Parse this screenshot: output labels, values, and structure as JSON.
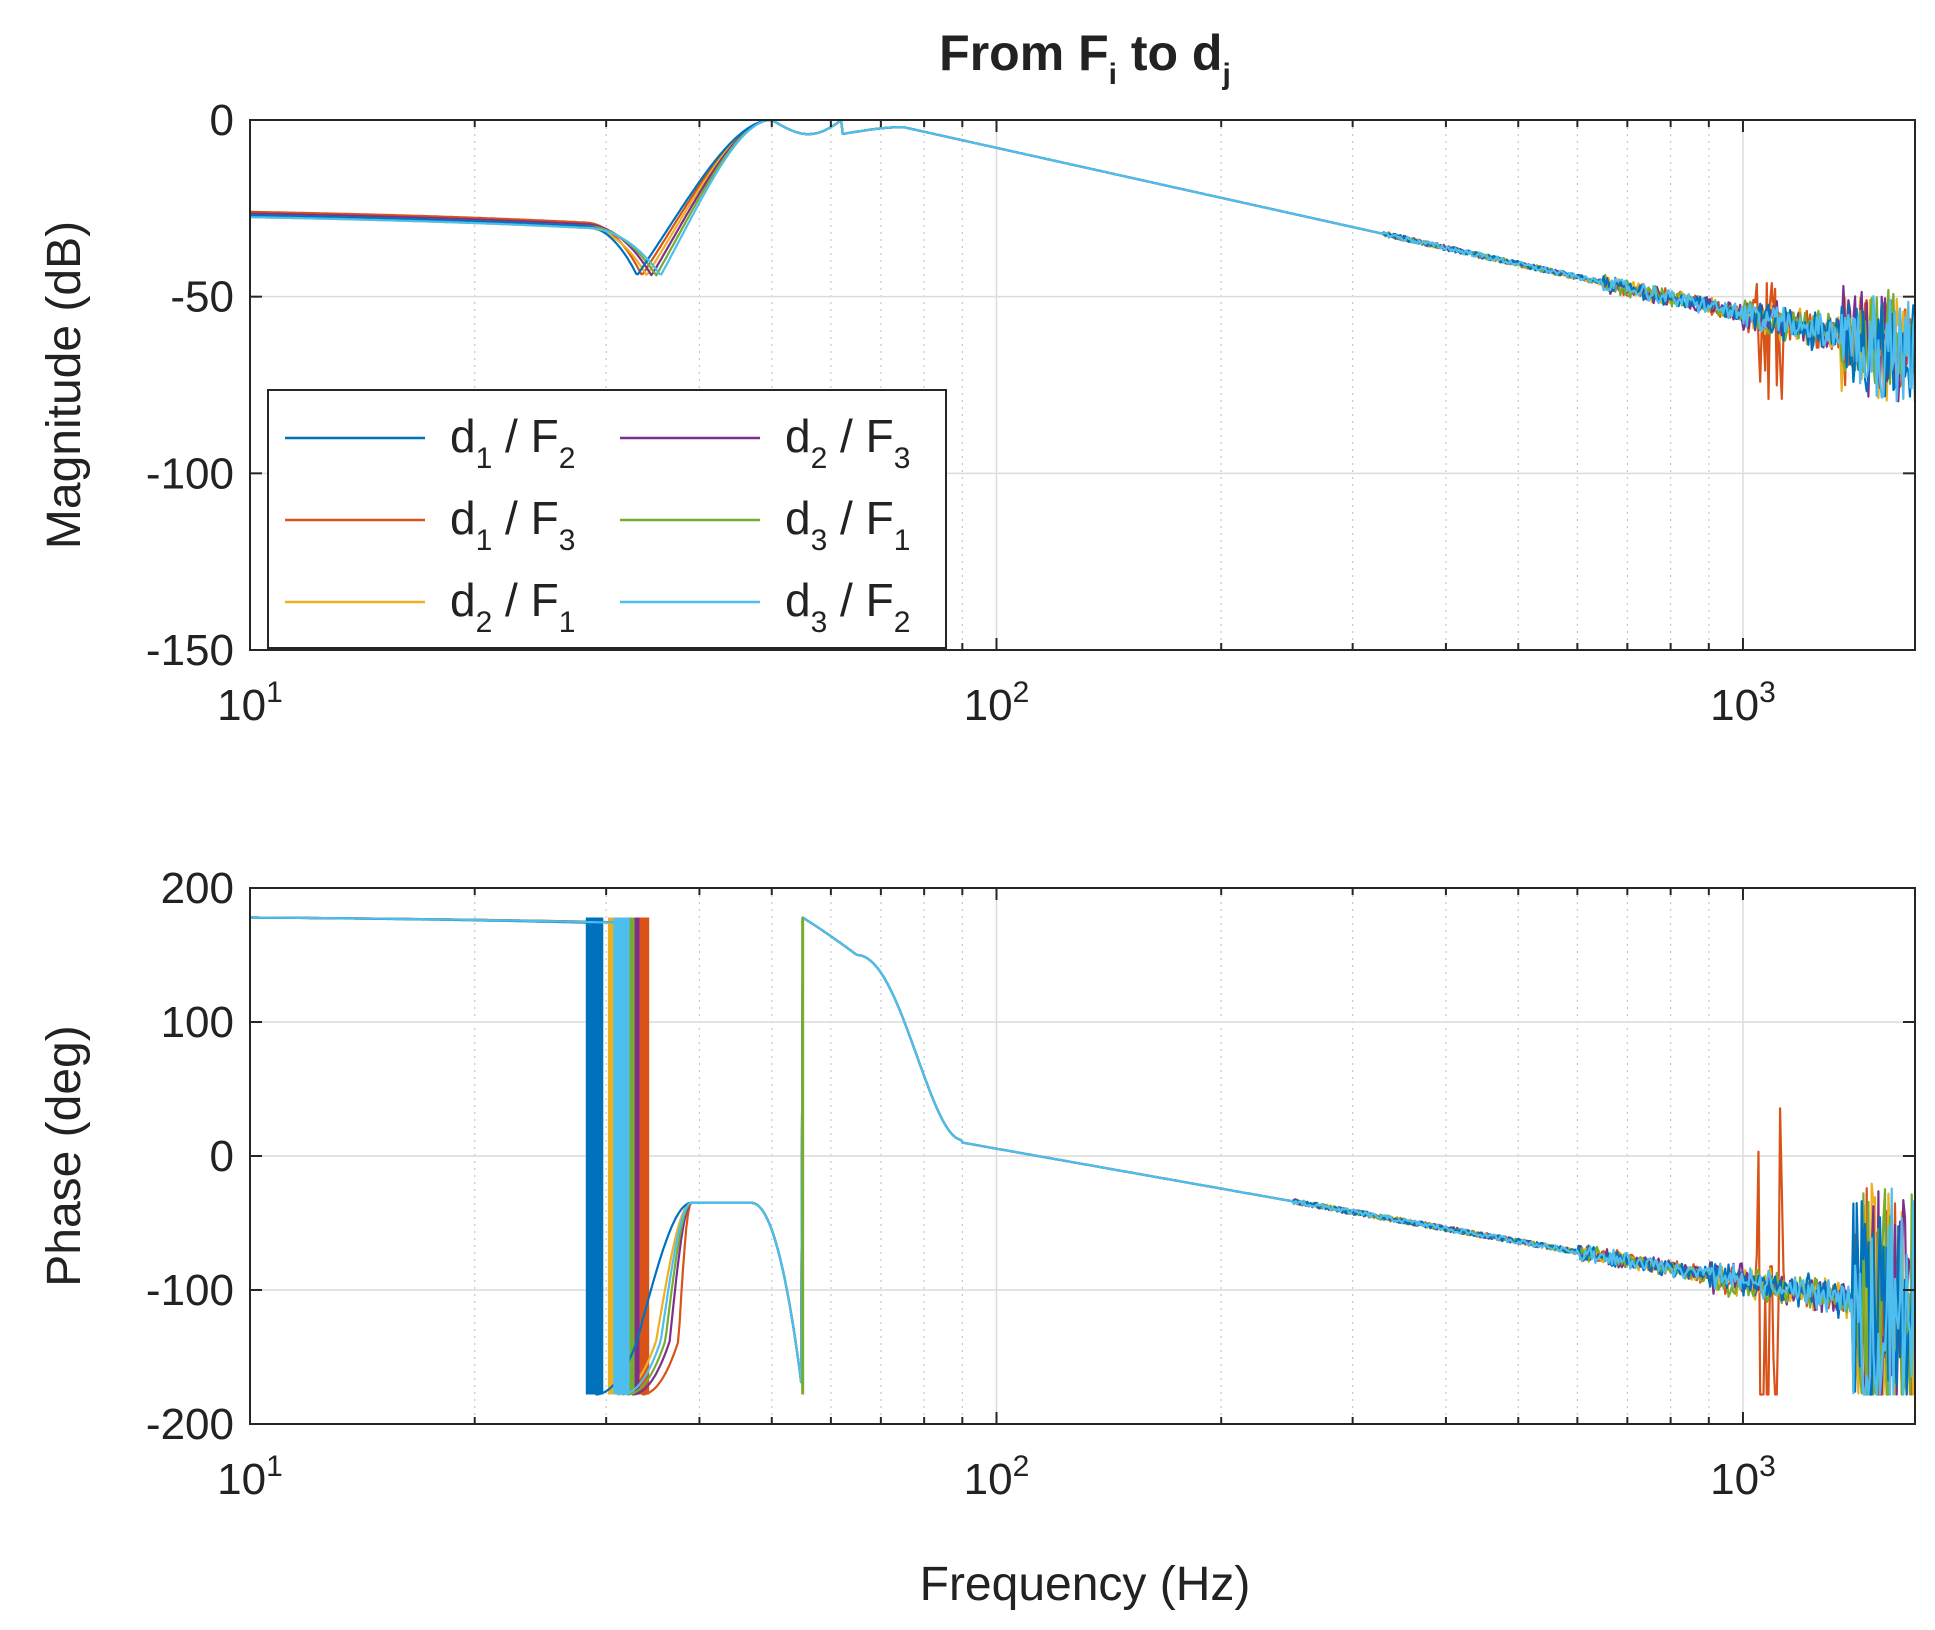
{
  "chart_data": {
    "type": "line",
    "title": "From F",
    "title_sub_i": "i",
    "title_mid": " to d",
    "title_sub_j": "j",
    "colors": {
      "d1/F2": "#0072BD",
      "d1/F3": "#D95319",
      "d2/F1": "#EDB120",
      "d2/F3": "#7E2F8E",
      "d3/F1": "#77AC30",
      "d3/F2": "#4DBEEE"
    },
    "legend": [
      {
        "name": "d1/F2",
        "a": "d",
        "as": "1",
        "b": "/ F",
        "bs": "2"
      },
      {
        "name": "d1/F3",
        "a": "d",
        "as": "1",
        "b": "/ F",
        "bs": "3"
      },
      {
        "name": "d2/F1",
        "a": "d",
        "as": "2",
        "b": "/ F",
        "bs": "1"
      },
      {
        "name": "d2/F3",
        "a": "d",
        "as": "2",
        "b": "/ F",
        "bs": "3"
      },
      {
        "name": "d3/F1",
        "a": "d",
        "as": "3",
        "b": "/ F",
        "bs": "1"
      },
      {
        "name": "d3/F2",
        "a": "d",
        "as": "3",
        "b": "/ F",
        "bs": "2"
      }
    ],
    "legend_location": "bottom-left",
    "xlabel": "Frequency (Hz)",
    "xscale": "log",
    "xlim": [
      10,
      1700
    ],
    "x_ticks": [
      {
        "value": 10,
        "base": "10",
        "exp": "1"
      },
      {
        "value": 100,
        "base": "10",
        "exp": "2"
      },
      {
        "value": 1000,
        "base": "10",
        "exp": "3"
      }
    ],
    "magnitude": {
      "ylabel": "Magnitude (dB)",
      "ylim": [
        -150,
        0
      ],
      "y_ticks": [
        0,
        -50,
        -100,
        -150
      ],
      "y_tick_labels": [
        "0",
        "-50",
        "-100",
        "-150"
      ],
      "notch_hz": [
        33,
        33.5,
        34,
        34.5,
        35,
        35.5
      ],
      "peak_hz": 50,
      "second_peak_hz": 75,
      "low_freq_db": [
        -27,
        -26,
        -27.5,
        -26.5,
        -27,
        -27.5
      ]
    },
    "phase": {
      "ylabel": "Phase (deg)",
      "ylim": [
        -200,
        200
      ],
      "y_ticks": [
        200,
        100,
        0,
        -100,
        -200
      ],
      "y_tick_labels": [
        "200",
        "100",
        "0",
        "-100",
        "-200"
      ],
      "wrap_hz": [
        29,
        33.5,
        31,
        32.5,
        32,
        31.5
      ],
      "second_wrap_hz": 55,
      "low_freq_deg": 178
    }
  }
}
